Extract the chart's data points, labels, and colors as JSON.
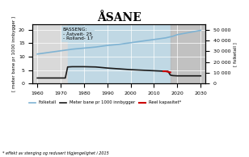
{
  "title": "ÅSANE",
  "ylabel_left": "[ meter bane pr 1000 innbygger ]",
  "ylabel_right": "[ folketall ]",
  "xlabel_note": "* effekt av stenging og redusert tilgjengelighet i 2015",
  "xlim": [
    1958,
    2032
  ],
  "ylim_left": [
    0,
    22
  ],
  "ylim_right": [
    0,
    55000
  ],
  "yticks_left": [
    0,
    5,
    10,
    15,
    20
  ],
  "yticks_right": [
    0,
    10000,
    20000,
    30000,
    40000,
    50000
  ],
  "ytick_labels_right": [
    "0",
    "10 000",
    "20 000",
    "30 000",
    "40 000",
    "50 000"
  ],
  "xticks": [
    1960,
    1970,
    1980,
    1990,
    2000,
    2010,
    2020,
    2030
  ],
  "bg_color": "#d9d9d9",
  "bg_color_blue": "#c0d8e4",
  "bg_color_dark": "#b8b8b8",
  "folketall_color": "#7fb3d3",
  "meter_bane_color": "#1a1a1a",
  "reel_color": "#cc0000",
  "legend_entries": [
    "Folketall",
    "Meter bane pr 1000 innbygger",
    "Reel kapasitet*"
  ],
  "basseng_line1": "BASSENG:",
  "basseng_line2": "- Åstveit- 25",
  "basseng_line3": "- Rolland- 17",
  "befolkning_years": [
    1960,
    1965,
    1970,
    1975,
    1980,
    1985,
    1990,
    1995,
    2000,
    2005,
    2010,
    2015,
    2018,
    2020,
    2025,
    2030
  ],
  "befolkning_values": [
    27500,
    29000,
    30500,
    32000,
    33000,
    34000,
    35500,
    36500,
    38000,
    39500,
    41000,
    42500,
    44000,
    45500,
    47500,
    49500
  ],
  "meter_bane_years": [
    1960,
    1965,
    1970,
    1972,
    1973,
    1975,
    1980,
    1985,
    1990,
    1995,
    2000,
    2005,
    2010,
    2015,
    2016,
    2017,
    2018,
    2020,
    2025,
    2030
  ],
  "meter_bane_values": [
    2.1,
    2.1,
    2.1,
    2.1,
    6.2,
    6.3,
    6.3,
    6.2,
    5.8,
    5.5,
    5.2,
    5.0,
    4.8,
    4.6,
    4.6,
    3.2,
    3.0,
    2.9,
    2.9,
    2.9
  ],
  "reel_years": [
    2014,
    2015,
    2016,
    2017
  ],
  "reel_values": [
    4.6,
    4.6,
    4.4,
    4.2
  ]
}
